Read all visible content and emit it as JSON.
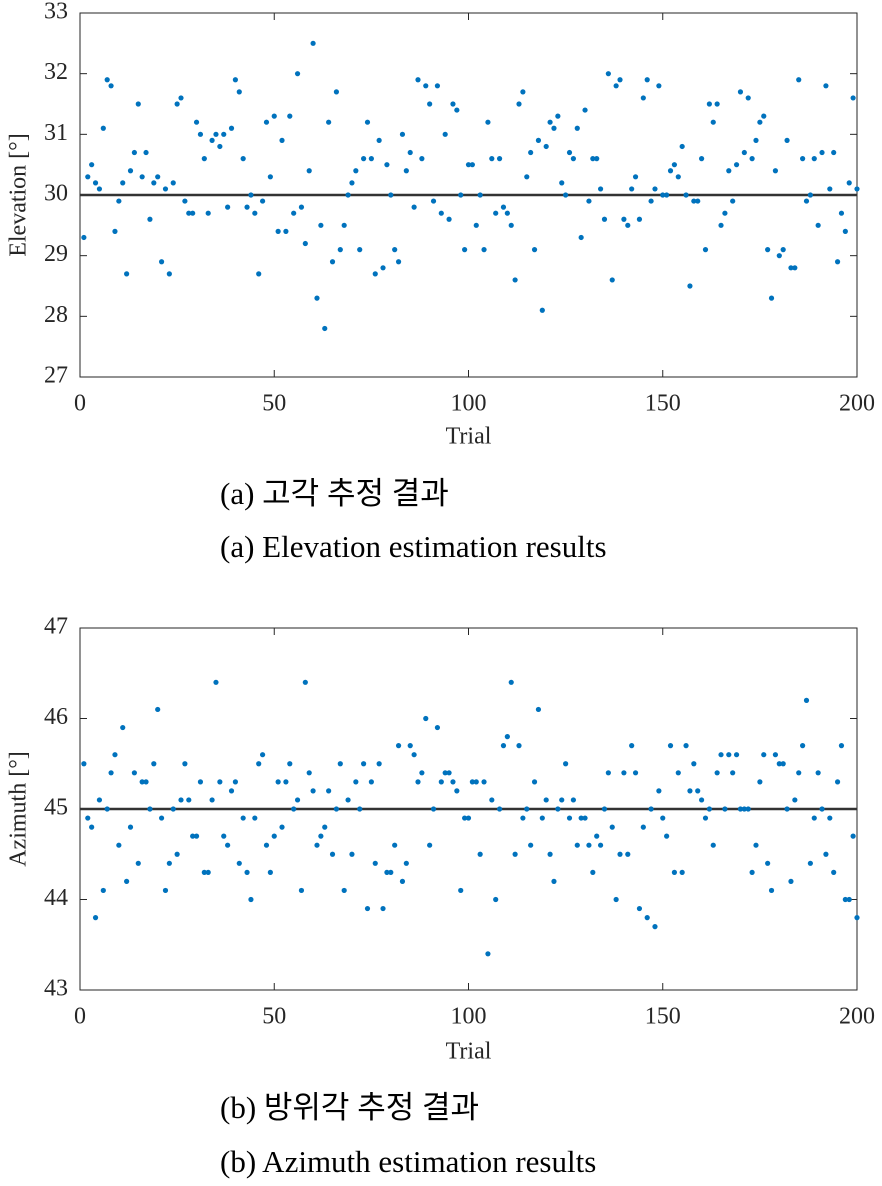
{
  "chart_data": [
    {
      "type": "scatter",
      "y_label": "Elevation [°]",
      "x_label": "Trial",
      "caption_ko": "(a) 고각 추정 결과",
      "caption_en": "(a) Elevation estimation results",
      "color": "#0072bd",
      "reference_line": 30,
      "xlim": [
        0,
        200
      ],
      "xticks": [
        0,
        50,
        100,
        150,
        200
      ],
      "ylim": [
        27,
        33
      ],
      "yticks": [
        27,
        28,
        29,
        30,
        31,
        32,
        33
      ],
      "x": [
        1,
        2,
        3,
        4,
        5,
        6,
        7,
        8,
        9,
        10,
        11,
        12,
        13,
        14,
        15,
        16,
        17,
        18,
        19,
        20,
        21,
        22,
        23,
        24,
        25,
        26,
        27,
        28,
        29,
        30,
        31,
        32,
        33,
        34,
        35,
        36,
        37,
        38,
        39,
        40,
        41,
        42,
        43,
        44,
        45,
        46,
        47,
        48,
        49,
        50,
        51,
        52,
        53,
        54,
        55,
        56,
        57,
        58,
        59,
        60,
        61,
        62,
        63,
        64,
        65,
        66,
        67,
        68,
        69,
        70,
        71,
        72,
        73,
        74,
        75,
        76,
        77,
        78,
        79,
        80,
        81,
        82,
        83,
        84,
        85,
        86,
        87,
        88,
        89,
        90,
        91,
        92,
        93,
        94,
        95,
        96,
        97,
        98,
        99,
        100,
        101,
        102,
        103,
        104,
        105,
        106,
        107,
        108,
        109,
        110,
        111,
        112,
        113,
        114,
        115,
        116,
        117,
        118,
        119,
        120,
        121,
        122,
        123,
        124,
        125,
        126,
        127,
        128,
        129,
        130,
        131,
        132,
        133,
        134,
        135,
        136,
        137,
        138,
        139,
        140,
        141,
        142,
        143,
        144,
        145,
        146,
        147,
        148,
        149,
        150,
        151,
        152,
        153,
        154,
        155,
        156,
        157,
        158,
        159,
        160,
        161,
        162,
        163,
        164,
        165,
        166,
        167,
        168,
        169,
        170,
        171,
        172,
        173,
        174,
        175,
        176,
        177,
        178,
        179,
        180,
        181,
        182,
        183,
        184,
        185,
        186,
        187,
        188,
        189,
        190,
        191,
        192,
        193,
        194,
        195,
        196,
        197,
        198,
        199,
        200
      ],
      "values": [
        29.3,
        30.3,
        30.5,
        30.2,
        30.1,
        31.1,
        31.9,
        31.8,
        29.4,
        29.9,
        30.2,
        28.7,
        30.4,
        30.7,
        31.5,
        30.3,
        30.7,
        29.6,
        30.2,
        30.3,
        28.9,
        30.1,
        28.7,
        30.2,
        31.5,
        31.6,
        29.9,
        29.7,
        29.7,
        31.2,
        31.0,
        30.6,
        29.7,
        30.9,
        31.0,
        30.8,
        31.0,
        29.8,
        31.1,
        31.9,
        31.7,
        30.6,
        29.8,
        30.0,
        29.7,
        28.7,
        29.9,
        31.2,
        30.3,
        31.3,
        29.4,
        30.9,
        29.4,
        31.3,
        29.7,
        32.0,
        29.8,
        29.2,
        30.4,
        32.5,
        28.3,
        29.5,
        27.8,
        31.2,
        28.9,
        31.7,
        29.1,
        29.5,
        30.0,
        30.2,
        30.4,
        29.1,
        30.6,
        31.2,
        30.6,
        28.7,
        30.9,
        28.8,
        30.5,
        30.0,
        29.1,
        28.9,
        31.0,
        30.4,
        30.7,
        29.8,
        31.9,
        30.6,
        31.8,
        31.5,
        29.9,
        31.8,
        29.7,
        31.0,
        29.6,
        31.5,
        31.4,
        30.0,
        29.1,
        30.5,
        30.5,
        29.5,
        30.0,
        29.1,
        31.2,
        30.6,
        29.7,
        30.6,
        29.8,
        29.7,
        29.5,
        28.6,
        31.5,
        31.7,
        30.3,
        30.7,
        29.1,
        30.9,
        28.1,
        30.8,
        31.2,
        31.1,
        31.3,
        30.2,
        30.0,
        30.7,
        30.6,
        31.1,
        29.3,
        31.4,
        29.9,
        30.6,
        30.6,
        30.1,
        29.6,
        32.0,
        28.6,
        31.8,
        31.9,
        29.6,
        29.5,
        30.1,
        30.3,
        29.6,
        31.6,
        31.9,
        29.9,
        30.1,
        31.8,
        30.0,
        30.0,
        30.4,
        30.5,
        30.3,
        30.8,
        30.0,
        28.5,
        29.9,
        29.9,
        30.6,
        29.1,
        31.5,
        31.2,
        31.5,
        29.5,
        29.7,
        30.4,
        29.9,
        30.5,
        31.7,
        30.7,
        31.6,
        30.6,
        30.9,
        31.2,
        31.3,
        29.1,
        28.3,
        30.4,
        29.0,
        29.1,
        30.9,
        28.8,
        28.8,
        31.9,
        30.6,
        29.9,
        30.0,
        30.6,
        29.5,
        30.7,
        31.8,
        30.1,
        30.7,
        28.9,
        29.7,
        29.4,
        30.2,
        31.6,
        30.1
      ]
    },
    {
      "type": "scatter",
      "y_label": "Azimuth [°]",
      "x_label": "Trial",
      "caption_ko": "(b) 방위각 추정 결과",
      "caption_en": "(b) Azimuth estimation results",
      "color": "#0072bd",
      "reference_line": 45,
      "xlim": [
        0,
        200
      ],
      "xticks": [
        0,
        50,
        100,
        150,
        200
      ],
      "ylim": [
        43,
        47
      ],
      "yticks": [
        43,
        44,
        45,
        46,
        47
      ],
      "x": [
        1,
        2,
        3,
        4,
        5,
        6,
        7,
        8,
        9,
        10,
        11,
        12,
        13,
        14,
        15,
        16,
        17,
        18,
        19,
        20,
        21,
        22,
        23,
        24,
        25,
        26,
        27,
        28,
        29,
        30,
        31,
        32,
        33,
        34,
        35,
        36,
        37,
        38,
        39,
        40,
        41,
        42,
        43,
        44,
        45,
        46,
        47,
        48,
        49,
        50,
        51,
        52,
        53,
        54,
        55,
        56,
        57,
        58,
        59,
        60,
        61,
        62,
        63,
        64,
        65,
        66,
        67,
        68,
        69,
        70,
        71,
        72,
        73,
        74,
        75,
        76,
        77,
        78,
        79,
        80,
        81,
        82,
        83,
        84,
        85,
        86,
        87,
        88,
        89,
        90,
        91,
        92,
        93,
        94,
        95,
        96,
        97,
        98,
        99,
        100,
        101,
        102,
        103,
        104,
        105,
        106,
        107,
        108,
        109,
        110,
        111,
        112,
        113,
        114,
        115,
        116,
        117,
        118,
        119,
        120,
        121,
        122,
        123,
        124,
        125,
        126,
        127,
        128,
        129,
        130,
        131,
        132,
        133,
        134,
        135,
        136,
        137,
        138,
        139,
        140,
        141,
        142,
        143,
        144,
        145,
        146,
        147,
        148,
        149,
        150,
        151,
        152,
        153,
        154,
        155,
        156,
        157,
        158,
        159,
        160,
        161,
        162,
        163,
        164,
        165,
        166,
        167,
        168,
        169,
        170,
        171,
        172,
        173,
        174,
        175,
        176,
        177,
        178,
        179,
        180,
        181,
        182,
        183,
        184,
        185,
        186,
        187,
        188,
        189,
        190,
        191,
        192,
        193,
        194,
        195,
        196,
        197,
        198,
        199,
        200
      ],
      "values": [
        45.5,
        44.9,
        44.8,
        43.8,
        45.1,
        44.1,
        45.0,
        45.4,
        45.6,
        44.6,
        45.9,
        44.2,
        44.8,
        45.4,
        44.4,
        45.3,
        45.3,
        45.0,
        45.5,
        46.1,
        44.9,
        44.1,
        44.4,
        45.0,
        44.5,
        45.1,
        45.5,
        45.1,
        44.7,
        44.7,
        45.3,
        44.3,
        44.3,
        45.1,
        46.4,
        45.3,
        44.7,
        44.6,
        45.2,
        45.3,
        44.4,
        44.9,
        44.3,
        44.0,
        44.9,
        45.5,
        45.6,
        44.6,
        44.3,
        44.7,
        45.3,
        44.8,
        45.3,
        45.5,
        45.0,
        45.1,
        44.1,
        46.4,
        45.4,
        45.2,
        44.6,
        44.7,
        44.8,
        45.2,
        44.5,
        45.0,
        45.5,
        44.1,
        45.1,
        44.5,
        45.3,
        45.0,
        45.5,
        43.9,
        45.3,
        44.4,
        45.5,
        43.9,
        44.3,
        44.3,
        44.6,
        45.7,
        44.2,
        44.4,
        45.7,
        45.6,
        45.3,
        45.4,
        46.0,
        44.6,
        45.0,
        45.9,
        45.3,
        45.4,
        45.4,
        45.3,
        45.2,
        44.1,
        44.9,
        44.9,
        45.3,
        45.3,
        44.5,
        45.3,
        43.4,
        45.1,
        44.0,
        45.0,
        45.7,
        45.8,
        46.4,
        44.5,
        45.7,
        44.9,
        45.0,
        44.6,
        45.3,
        46.1,
        44.9,
        45.1,
        44.5,
        44.2,
        45.0,
        45.1,
        45.5,
        44.9,
        45.1,
        44.6,
        44.9,
        44.9,
        44.6,
        44.3,
        44.7,
        44.6,
        45.0,
        45.4,
        44.8,
        44.0,
        44.5,
        45.4,
        44.5,
        45.7,
        45.4,
        43.9,
        44.8,
        43.8,
        45.0,
        43.7,
        45.2,
        44.9,
        44.7,
        45.7,
        44.3,
        45.4,
        44.3,
        45.7,
        45.2,
        45.5,
        45.2,
        45.1,
        44.9,
        45.0,
        44.6,
        45.4,
        45.6,
        45.0,
        45.6,
        45.4,
        45.6,
        45.0,
        45.0,
        45.0,
        44.3,
        44.6,
        45.3,
        45.6,
        44.4,
        44.1,
        45.6,
        45.5,
        45.5,
        45.0,
        44.2,
        45.1,
        45.4,
        45.7,
        46.2,
        44.4,
        44.9,
        45.4,
        45.0,
        44.5,
        44.9,
        44.3,
        45.3,
        45.7,
        44.0,
        44.0,
        44.7,
        43.8
      ]
    }
  ]
}
